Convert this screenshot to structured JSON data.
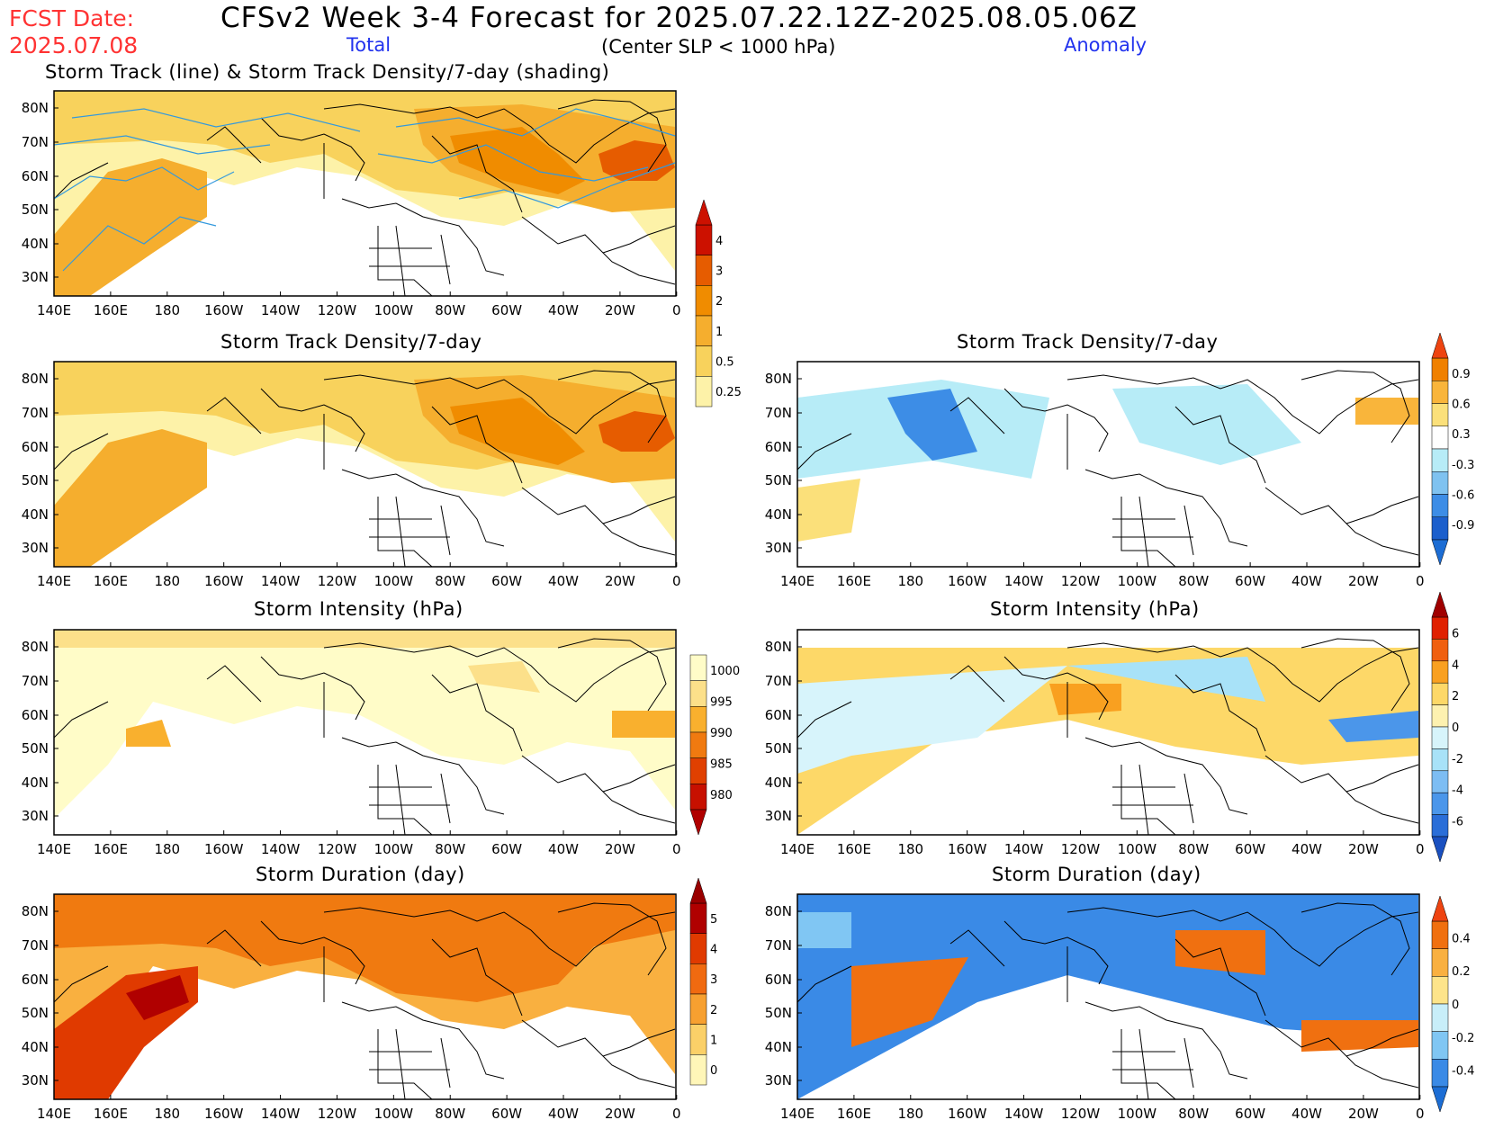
{
  "header": {
    "fcst_label": "FCST Date:",
    "fcst_date": "2025.07.08",
    "title": "CFSv2 Week 3-4 Forecast for 2025.07.22.12Z-2025.08.05.06Z",
    "total_label": "Total",
    "anomaly_label": "Anomaly",
    "subtitle": "(Center SLP < 1000 hPa)"
  },
  "axes": {
    "lat_labels": [
      "80N",
      "70N",
      "60N",
      "50N",
      "40N",
      "30N"
    ],
    "lon_labels": [
      "140E",
      "160E",
      "180",
      "160W",
      "140W",
      "120W",
      "100W",
      "80W",
      "60W",
      "40W",
      "20W",
      "0"
    ]
  },
  "panels": [
    {
      "id": "track-total",
      "title": "Storm Track (line) & Storm Track Density/7-day (shading)",
      "palette": "yellow-orange",
      "track_color": "#3399dd"
    },
    {
      "id": "density-total",
      "title": "Storm Track Density/7-day",
      "palette": "yellow-orange"
    },
    {
      "id": "density-anom",
      "title": "Storm Track Density/7-day",
      "palette": "blue-orange"
    },
    {
      "id": "intensity-total",
      "title": "Storm Intensity (hPa)",
      "palette": "yellow-red"
    },
    {
      "id": "intensity-anom",
      "title": "Storm Intensity (hPa)",
      "palette": "blue-orange"
    },
    {
      "id": "duration-total",
      "title": "Storm Duration (day)",
      "palette": "yellow-red"
    },
    {
      "id": "duration-anom",
      "title": "Storm Duration (day)",
      "palette": "blue-orange"
    }
  ],
  "colorbars": [
    {
      "id": "cb-density-total",
      "labels": [
        "4",
        "3",
        "2",
        "1",
        "0.5",
        "0.25"
      ],
      "colors": [
        "#cc1100",
        "#e65c00",
        "#f08c00",
        "#f5ae2e",
        "#f8d25c",
        "#fdf2a8"
      ],
      "tip_top": "#cc1100"
    },
    {
      "id": "cb-density-anom",
      "labels": [
        "0.9",
        "0.6",
        "0.3",
        "-0.3",
        "-0.6",
        "-0.9"
      ],
      "colors": [
        "#f08000",
        "#f9b53b",
        "#fbe07a",
        "#ffffff",
        "#b7ecf7",
        "#7fc2f0",
        "#3d8de6",
        "#1c5fcc"
      ],
      "tip_top": "#ee4411",
      "tip_bottom": "#1c6dd4"
    },
    {
      "id": "cb-intensity-total",
      "labels": [
        "1000",
        "995",
        "990",
        "985",
        "980"
      ],
      "colors": [
        "#fffcc8",
        "#fce08a",
        "#f9b02e",
        "#f07a10",
        "#e04000",
        "#c71000"
      ],
      "tip_bottom": "#b00000"
    },
    {
      "id": "cb-intensity-anom",
      "labels": [
        "6",
        "4",
        "2",
        "0",
        "-2",
        "-4",
        "-6"
      ],
      "colors": [
        "#e02000",
        "#f06010",
        "#f9a020",
        "#fdd868",
        "#fdf1b0",
        "#d7f4fb",
        "#a8e2f8",
        "#7dbdf3",
        "#4b96ea",
        "#2a6ed8"
      ],
      "tip_top": "#a00000",
      "tip_bottom": "#1a50c0"
    },
    {
      "id": "cb-duration-total",
      "labels": [
        "5",
        "4",
        "3",
        "2",
        "1",
        "0"
      ],
      "colors": [
        "#b00000",
        "#e03a00",
        "#f06a10",
        "#f7a030",
        "#fbd068",
        "#fff6b8"
      ],
      "tip_top": "#990000"
    },
    {
      "id": "cb-duration-anom",
      "labels": [
        "0.4",
        "0.2",
        "0",
        "-0.2",
        "-0.4"
      ],
      "colors": [
        "#f07010",
        "#f9b040",
        "#fde48a",
        "#c8eef9",
        "#80c6f3",
        "#3a8ae6"
      ],
      "tip_top": "#ee4411",
      "tip_bottom": "#1c6dd4"
    }
  ]
}
